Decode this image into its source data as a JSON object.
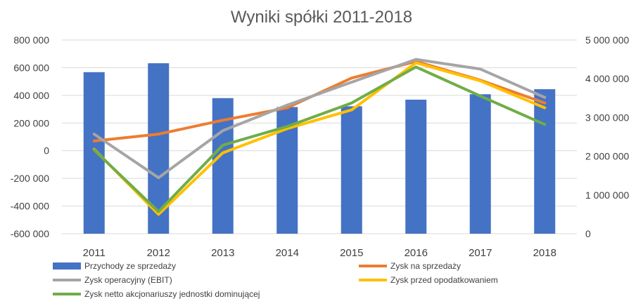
{
  "chart_data": {
    "type": "bar+line",
    "title": "Wyniki spółki 2011-2018",
    "categories": [
      "2011",
      "2012",
      "2013",
      "2014",
      "2015",
      "2016",
      "2017",
      "2018"
    ],
    "y_left": {
      "min": -600000,
      "max": 800000,
      "step": 200000,
      "tick_labels": [
        "800 000",
        "600 000",
        "400 000",
        "200 000",
        "0",
        "-200 000",
        "-400 000",
        "-600 000"
      ]
    },
    "y_right": {
      "min": 0,
      "max": 5000000,
      "step": 1000000,
      "tick_labels": [
        "5 000 000",
        "4 000 000",
        "3 000 000",
        "2 000 000",
        "1 000 000",
        "0"
      ]
    },
    "grid": true,
    "legend_position": "bottom",
    "series": [
      {
        "name": "Przychody ze sprzedaży",
        "kind": "bar",
        "axis": "right",
        "color": "#4472C4",
        "values": [
          4170000,
          4400000,
          3500000,
          3270000,
          3290000,
          3460000,
          3600000,
          3730000
        ]
      },
      {
        "name": "Zysk na sprzedaży",
        "kind": "line",
        "axis": "left",
        "color": "#ED7D31",
        "values": [
          70000,
          120000,
          220000,
          310000,
          525000,
          645000,
          510000,
          345000
        ]
      },
      {
        "name": "Zysk operacyjny (EBIT)",
        "kind": "line",
        "axis": "left",
        "color": "#A5A5A5",
        "values": [
          120000,
          -195000,
          145000,
          330000,
          495000,
          660000,
          590000,
          385000
        ]
      },
      {
        "name": "Zysk przed opodatkowaniem",
        "kind": "line",
        "axis": "left",
        "color": "#FFC000",
        "values": [
          10000,
          -460000,
          -15000,
          160000,
          295000,
          635000,
          505000,
          310000
        ]
      },
      {
        "name": "Zysk netto akcjonariuszy jednostki dominującej",
        "kind": "line",
        "axis": "left",
        "color": "#70AD47",
        "values": [
          5000,
          -440000,
          40000,
          175000,
          345000,
          605000,
          395000,
          190000
        ]
      }
    ]
  }
}
